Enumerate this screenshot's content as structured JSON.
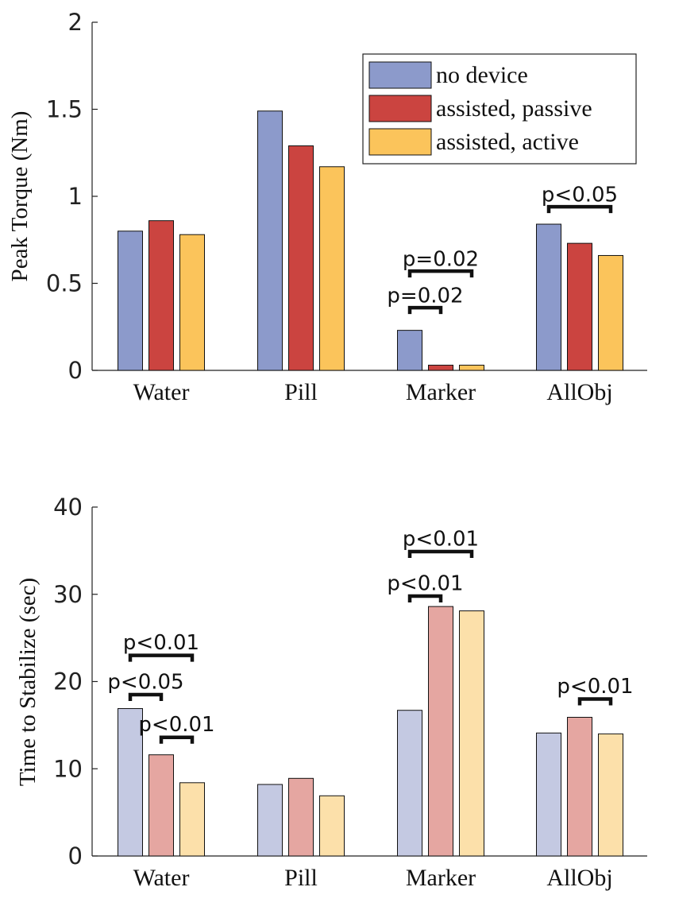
{
  "chart_data": [
    {
      "type": "bar",
      "ylabel": "Peak Torque (Nm)",
      "xlabel": "",
      "categories": [
        "Water",
        "Pill",
        "Marker",
        "AllObj"
      ],
      "ylim": [
        0,
        2
      ],
      "yticks": [
        0,
        0.5,
        1,
        1.5,
        2
      ],
      "ytick_labels": [
        "0",
        "0.5",
        "1",
        "1.5",
        "2"
      ],
      "grid": false,
      "legend_position": "top-right",
      "series": [
        {
          "name": "no device",
          "color": "#8C9ACB",
          "values": [
            0.8,
            1.49,
            0.23,
            0.84
          ]
        },
        {
          "name": "assisted, passive",
          "color": "#CB4440",
          "values": [
            0.86,
            1.29,
            0.03,
            0.73
          ]
        },
        {
          "name": "assisted, active",
          "color": "#FBC45B",
          "values": [
            0.78,
            1.17,
            0.03,
            0.66
          ]
        }
      ],
      "annotations": [
        {
          "text": "p=0.02",
          "category": 2,
          "from_series": 0,
          "to_series": 1,
          "y": 0.36,
          "label_y": 0.39
        },
        {
          "text": "p=0.02",
          "category": 2,
          "from_series": 0,
          "to_series": 2,
          "y": 0.57,
          "label_y": 0.6
        },
        {
          "text": "p<0.05",
          "category": 3,
          "from_series": 0,
          "to_series": 2,
          "y": 0.94,
          "label_y": 0.97
        }
      ]
    },
    {
      "type": "bar",
      "ylabel": "Time to Stabilize (sec)",
      "xlabel": "",
      "categories": [
        "Water",
        "Pill",
        "Marker",
        "AllObj"
      ],
      "ylim": [
        0,
        40
      ],
      "yticks": [
        0,
        10,
        20,
        30,
        40
      ],
      "ytick_labels": [
        "0",
        "10",
        "20",
        "30",
        "40"
      ],
      "grid": false,
      "series": [
        {
          "name": "no device",
          "color": "#C4C9E2",
          "values": [
            16.9,
            8.2,
            16.7,
            14.1
          ]
        },
        {
          "name": "assisted, passive",
          "color": "#E5A6A1",
          "values": [
            11.6,
            8.9,
            28.6,
            15.9
          ]
        },
        {
          "name": "assisted, active",
          "color": "#FCE0AA",
          "values": [
            8.4,
            6.9,
            28.1,
            14.0
          ]
        }
      ],
      "annotations": [
        {
          "text": "p<0.01",
          "category": 0,
          "from_series": 0,
          "to_series": 2,
          "y": 23.0,
          "label_y": 23.7
        },
        {
          "text": "p<0.05",
          "category": 0,
          "from_series": 0,
          "to_series": 1,
          "y": 18.5,
          "label_y": 19.2
        },
        {
          "text": "p<0.01",
          "category": 0,
          "from_series": 1,
          "to_series": 2,
          "y": 13.6,
          "label_y": 14.3
        },
        {
          "text": "p<0.01",
          "category": 2,
          "from_series": 0,
          "to_series": 2,
          "y": 34.9,
          "label_y": 35.6
        },
        {
          "text": "p<0.01",
          "category": 2,
          "from_series": 0,
          "to_series": 1,
          "y": 29.8,
          "label_y": 30.5
        },
        {
          "text": "p<0.01",
          "category": 3,
          "from_series": 1,
          "to_series": 2,
          "y": 18.0,
          "label_y": 18.7
        }
      ]
    }
  ]
}
